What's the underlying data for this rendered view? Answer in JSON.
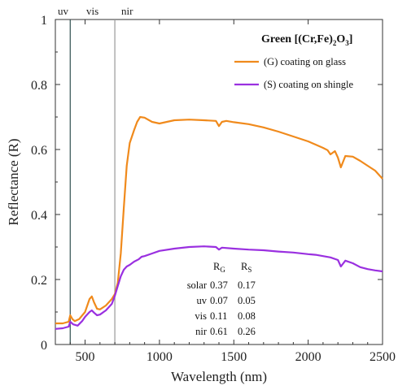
{
  "chart_data": {
    "type": "line",
    "title": "",
    "xlabel": "Wavelength (nm)",
    "ylabel": "Reflectance (R)",
    "xlim": [
      300,
      2500
    ],
    "ylim": [
      0,
      1
    ],
    "xticks": [
      500,
      1000,
      1500,
      2000,
      2500
    ],
    "xtick_labels": [
      "500",
      "1000",
      "1500",
      "2000",
      "2500"
    ],
    "yticks": [
      0,
      0.2,
      0.4,
      0.6,
      0.8,
      1
    ],
    "ytick_labels": [
      "0",
      "0.2",
      "0.4",
      "0.6",
      "0.8",
      "1"
    ],
    "grid": false,
    "legend_position": "top-right",
    "legend_title": {
      "main": "Green [(Cr,Fe)",
      "sub1": "2",
      "mid": "O",
      "sub2": "3",
      "end": "]"
    },
    "region_lines": [
      {
        "x": 400,
        "label": "uv",
        "color": "#2f4f4f"
      },
      {
        "x": 700,
        "label": "vis",
        "color": "#999999"
      }
    ],
    "region_label_nir": "nir",
    "series": [
      {
        "name": "(G) coating on glass",
        "color": "#f08a1c",
        "x": [
          300,
          350,
          390,
          400,
          415,
          430,
          460,
          500,
          530,
          545,
          560,
          580,
          600,
          640,
          680,
          700,
          720,
          740,
          760,
          780,
          800,
          830,
          850,
          870,
          900,
          950,
          1000,
          1050,
          1100,
          1200,
          1300,
          1380,
          1400,
          1420,
          1450,
          1500,
          1600,
          1700,
          1800,
          1900,
          2000,
          2050,
          2100,
          2130,
          2150,
          2180,
          2200,
          2220,
          2250,
          2300,
          2350,
          2400,
          2450,
          2500
        ],
        "y": [
          0.065,
          0.065,
          0.07,
          0.09,
          0.078,
          0.072,
          0.078,
          0.1,
          0.14,
          0.148,
          0.13,
          0.11,
          0.108,
          0.12,
          0.14,
          0.155,
          0.19,
          0.28,
          0.42,
          0.55,
          0.62,
          0.66,
          0.685,
          0.7,
          0.698,
          0.685,
          0.68,
          0.685,
          0.69,
          0.692,
          0.69,
          0.688,
          0.672,
          0.685,
          0.688,
          0.684,
          0.678,
          0.668,
          0.655,
          0.64,
          0.625,
          0.615,
          0.605,
          0.598,
          0.585,
          0.595,
          0.575,
          0.545,
          0.58,
          0.578,
          0.565,
          0.55,
          0.535,
          0.51
        ]
      },
      {
        "name": "(S) coating on shingle",
        "color": "#9a30e0",
        "x": [
          300,
          350,
          390,
          400,
          420,
          450,
          480,
          500,
          530,
          545,
          560,
          580,
          600,
          640,
          680,
          700,
          720,
          740,
          760,
          780,
          800,
          830,
          860,
          880,
          900,
          950,
          1000,
          1100,
          1200,
          1300,
          1380,
          1400,
          1420,
          1500,
          1600,
          1700,
          1800,
          1900,
          2000,
          2050,
          2100,
          2150,
          2200,
          2220,
          2250,
          2300,
          2350,
          2400,
          2450,
          2500
        ],
        "y": [
          0.048,
          0.05,
          0.055,
          0.07,
          0.062,
          0.058,
          0.072,
          0.085,
          0.1,
          0.105,
          0.098,
          0.09,
          0.092,
          0.105,
          0.125,
          0.15,
          0.18,
          0.21,
          0.23,
          0.24,
          0.245,
          0.255,
          0.262,
          0.27,
          0.272,
          0.28,
          0.288,
          0.295,
          0.3,
          0.302,
          0.3,
          0.292,
          0.298,
          0.295,
          0.292,
          0.29,
          0.286,
          0.283,
          0.278,
          0.276,
          0.272,
          0.268,
          0.26,
          0.24,
          0.258,
          0.25,
          0.238,
          0.232,
          0.228,
          0.225
        ]
      }
    ],
    "table": {
      "header_main": "R",
      "col_subs": [
        "G",
        "S"
      ],
      "rows": [
        {
          "label": "solar",
          "rg": "0.37",
          "rs": "0.17"
        },
        {
          "label": "uv",
          "rg": "0.07",
          "rs": "0.05"
        },
        {
          "label": "vis",
          "rg": "0.11",
          "rs": "0.08"
        },
        {
          "label": "nir",
          "rg": "0.61",
          "rs": "0.26"
        }
      ]
    }
  }
}
